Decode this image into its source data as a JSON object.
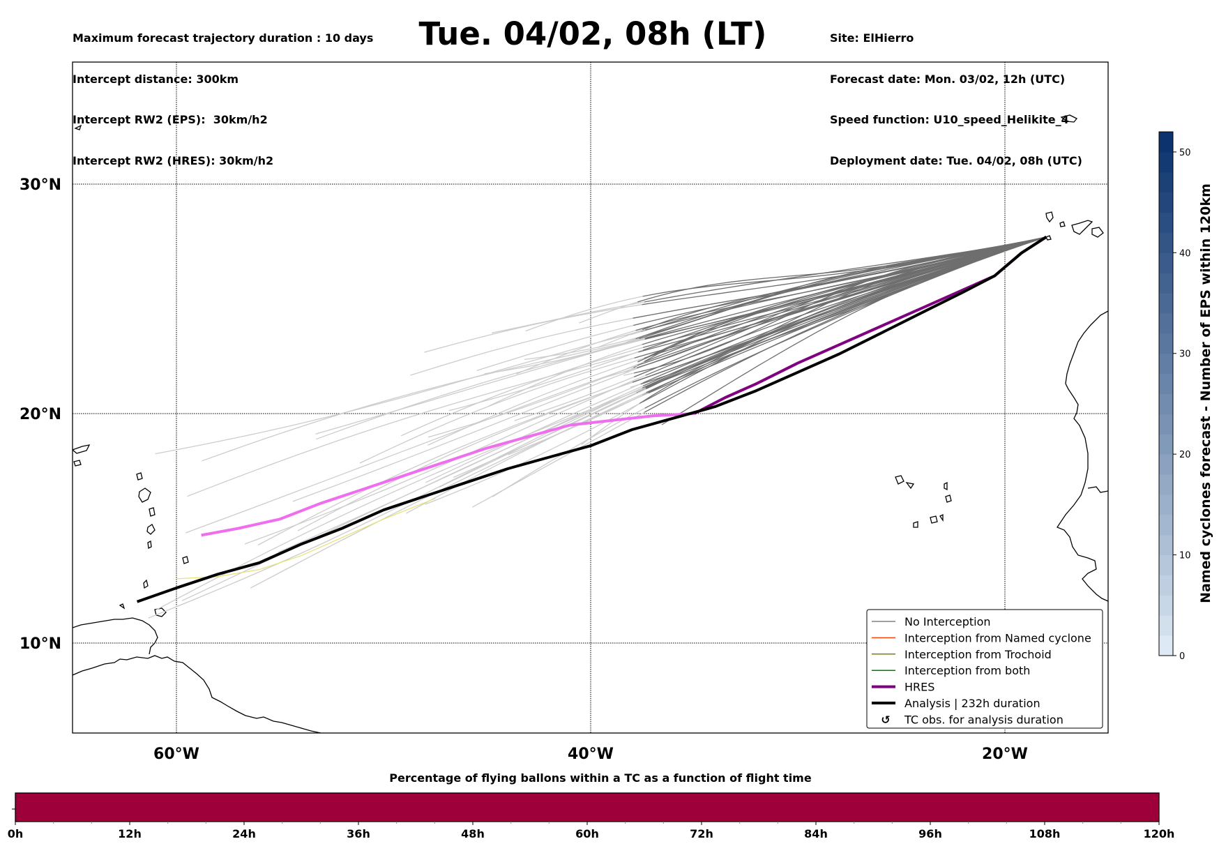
{
  "header": {
    "left_lines": [
      "Maximum forecast trajectory duration : 10 days",
      "Intercept distance: 300km",
      "Intercept RW2 (EPS):  30km/h2",
      "Intercept RW2 (HRES): 30km/h2"
    ],
    "title": "Tue. 04/02, 08h (LT)",
    "right_lines": [
      "Site: ElHierro",
      "Forecast date: Mon. 03/02, 12h (UTC)",
      "Speed function: U10_speed_Helikite_4",
      "Deployment date: Tue. 04/02, 08h (UTC)"
    ]
  },
  "map": {
    "lon_range": [
      -64.5,
      -14.5
    ],
    "lat_range": [
      5.2,
      34.3
    ],
    "lon_ticks": [
      {
        "value": -60,
        "label": "60°W"
      },
      {
        "value": -40,
        "label": "40°W"
      },
      {
        "value": -20,
        "label": "20°W"
      }
    ],
    "lat_ticks": [
      {
        "value": 30,
        "label": "30°N"
      },
      {
        "value": 20,
        "label": "20°N"
      },
      {
        "value": 10,
        "label": "10°N"
      }
    ],
    "site": {
      "name": "ElHierro",
      "lon": -18.0,
      "lat": 27.7
    },
    "hres_track": [
      [
        -18.0,
        27.7
      ],
      [
        -19.2,
        27.0
      ],
      [
        -20.5,
        26.0
      ],
      [
        -22.0,
        25.4
      ],
      [
        -24.0,
        24.6
      ],
      [
        -26.0,
        23.8
      ],
      [
        -28.0,
        23.0
      ],
      [
        -30.0,
        22.2
      ],
      [
        -32.0,
        21.3
      ],
      [
        -33.5,
        20.7
      ],
      [
        -35.0,
        20.0
      ],
      [
        -37.0,
        19.9
      ],
      [
        -39.0,
        19.7
      ],
      [
        -41.0,
        19.5
      ],
      [
        -43.0,
        19.0
      ],
      [
        -45.0,
        18.5
      ],
      [
        -47.0,
        17.9
      ],
      [
        -49.0,
        17.3
      ],
      [
        -51.0,
        16.7
      ],
      [
        -53.0,
        16.1
      ],
      [
        -55.0,
        15.4
      ],
      [
        -57.0,
        15.0
      ],
      [
        -58.8,
        14.7
      ]
    ],
    "analysis_track": [
      [
        -18.0,
        27.7
      ],
      [
        -19.2,
        27.0
      ],
      [
        -20.5,
        26.0
      ],
      [
        -22.0,
        25.3
      ],
      [
        -24.0,
        24.4
      ],
      [
        -26.0,
        23.5
      ],
      [
        -28.0,
        22.6
      ],
      [
        -30.0,
        21.8
      ],
      [
        -32.0,
        21.0
      ],
      [
        -34.0,
        20.3
      ],
      [
        -36.0,
        19.8
      ],
      [
        -38.0,
        19.3
      ],
      [
        -40.0,
        18.6
      ],
      [
        -42.0,
        18.1
      ],
      [
        -44.0,
        17.6
      ],
      [
        -46.0,
        17.0
      ],
      [
        -48.0,
        16.4
      ],
      [
        -50.0,
        15.8
      ],
      [
        -52.0,
        15.0
      ],
      [
        -54.0,
        14.3
      ],
      [
        -56.0,
        13.5
      ],
      [
        -58.0,
        13.0
      ],
      [
        -60.0,
        12.4
      ],
      [
        -61.9,
        11.8
      ]
    ],
    "trochoid_track": [
      [
        -47.5,
        16.3
      ],
      [
        -50.0,
        15.4
      ],
      [
        -52.0,
        14.6
      ],
      [
        -54.0,
        13.8
      ],
      [
        -56.0,
        13.2
      ],
      [
        -58.0,
        12.9
      ],
      [
        -60.0,
        12.8
      ]
    ],
    "eps_member_count": 50,
    "tc_obs_count": 0
  },
  "legend": {
    "items": [
      {
        "label": "No Interception",
        "color": "#808080",
        "width": 1.5
      },
      {
        "label": "Interception from Named cyclone",
        "color": "#ff4500",
        "width": 1.5
      },
      {
        "label": "Interception from Trochoid",
        "color": "#808000",
        "width": 1.5
      },
      {
        "label": "Interception from both",
        "color": "#008000",
        "width": 1.5
      },
      {
        "label": "HRES",
        "color": "#800080",
        "width": 4
      },
      {
        "label": "Analysis | 232h duration",
        "color": "#000000",
        "width": 4
      },
      {
        "label": "TC obs. for analysis duration",
        "marker": "↺"
      }
    ]
  },
  "colorbar": {
    "label": "Named cyclones forecast - Number of EPS within 120km",
    "ticks": [
      0,
      10,
      20,
      30,
      40,
      50
    ],
    "vmin": 0,
    "vmax": 52,
    "color_low": "#e3eef8",
    "color_high": "#08306b"
  },
  "flight_bar": {
    "title": "Percentage of flying ballons within a TC as a function of flight time",
    "tick_labels": [
      "0h",
      "12h",
      "24h",
      "36h",
      "48h",
      "60h",
      "72h",
      "84h",
      "96h",
      "108h",
      "120h"
    ],
    "max_hours": 120,
    "fill_color": "#9e003a",
    "percentage_value": 0
  }
}
